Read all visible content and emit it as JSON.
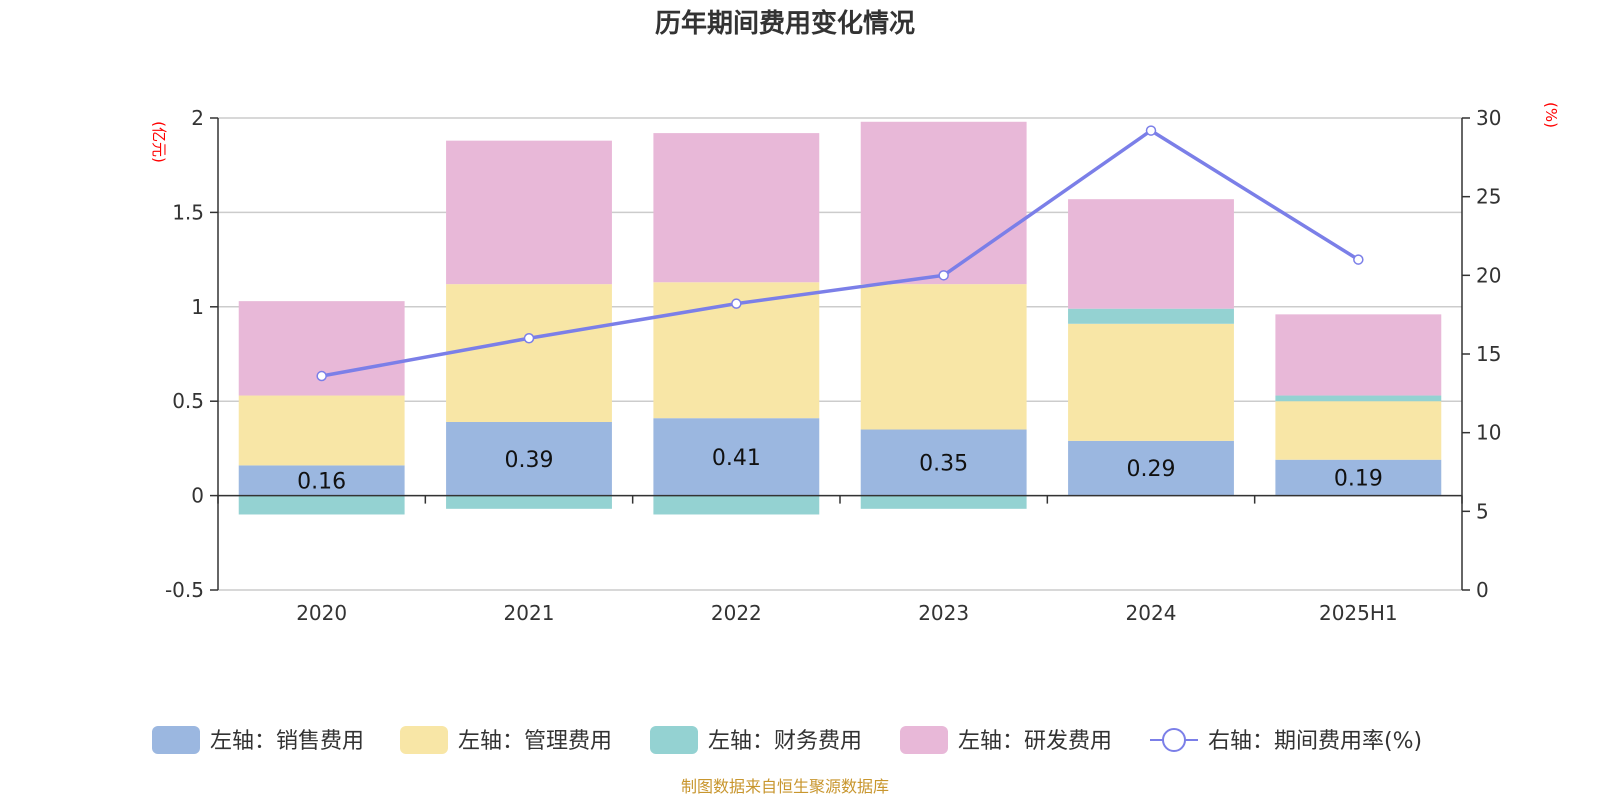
{
  "chart_data": {
    "type": "bar",
    "stacked": true,
    "title": "历年期间费用变化情况",
    "categories": [
      "2020",
      "2021",
      "2022",
      "2023",
      "2024",
      "2025H1"
    ],
    "left_axis": {
      "unit": "(亿元)",
      "ylim": [
        -0.5,
        2
      ],
      "ticks": [
        "-0.5",
        "0",
        "0.5",
        "1",
        "1.5",
        "2"
      ],
      "tick_values": [
        -0.5,
        0,
        0.5,
        1,
        1.5,
        2
      ]
    },
    "right_axis": {
      "unit": "(%)",
      "ylim": [
        0,
        30
      ],
      "ticks": [
        "0",
        "5",
        "10",
        "15",
        "20",
        "25",
        "30"
      ],
      "tick_values": [
        0,
        5,
        10,
        15,
        20,
        25,
        30
      ]
    },
    "series": [
      {
        "name": "左轴：销售费用",
        "color": "#9bb7e0",
        "axis": "left",
        "type": "bar",
        "values": [
          0.16,
          0.39,
          0.41,
          0.35,
          0.29,
          0.19
        ],
        "labels": [
          "0.16",
          "0.39",
          "0.41",
          "0.35",
          "0.29",
          "0.19"
        ]
      },
      {
        "name": "左轴：管理费用",
        "color": "#f8e6a6",
        "axis": "left",
        "type": "bar",
        "values": [
          0.37,
          0.73,
          0.72,
          0.77,
          0.62,
          0.31
        ]
      },
      {
        "name": "左轴：财务费用",
        "color": "#94d2d2",
        "axis": "left",
        "type": "bar",
        "values": [
          -0.1,
          -0.07,
          -0.1,
          -0.07,
          0.08,
          0.03
        ]
      },
      {
        "name": "左轴：研发费用",
        "color": "#e8b8d8",
        "axis": "left",
        "type": "bar",
        "values": [
          0.5,
          0.76,
          0.79,
          0.86,
          0.58,
          0.43
        ]
      },
      {
        "name": "右轴：期间费用率(%)",
        "color": "#7b7fe8",
        "axis": "right",
        "type": "line",
        "values": [
          13.6,
          16.0,
          18.2,
          20.0,
          29.2,
          21.0
        ]
      }
    ],
    "grid": true,
    "legend_position": "bottom"
  },
  "source": "制图数据来自恒生聚源数据库"
}
